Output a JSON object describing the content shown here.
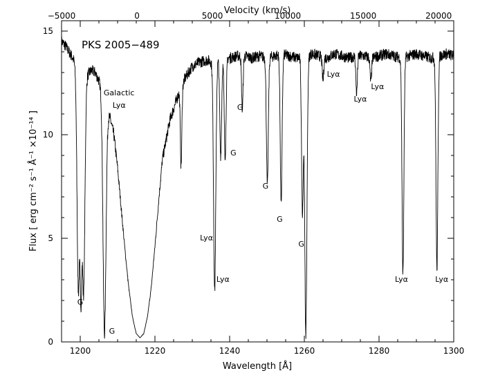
{
  "chart_data": {
    "type": "line",
    "object_label": "PKS 2005−489",
    "xlabel": "Wavelength  [Å]",
    "ylabel": "Flux  [ erg cm⁻² s⁻¹ Å⁻¹ ×10⁻¹⁴ ]",
    "top_xlabel": "Velocity (km/s)",
    "xlim": [
      1195,
      1300
    ],
    "ylim": [
      0,
      15.5
    ],
    "top_xlim": [
      -5000,
      21000
    ],
    "x_ticks": [
      1200,
      1220,
      1240,
      1260,
      1280,
      1300
    ],
    "y_ticks": [
      0,
      5,
      10,
      15
    ],
    "top_ticks": [
      -5000,
      0,
      5000,
      10000,
      15000,
      20000
    ],
    "top_tick_labels": [
      "−5000",
      "0",
      "5000",
      "10000",
      "15000",
      "20000"
    ],
    "spectrum": {
      "x": [
        1195,
        1196,
        1197,
        1198,
        1199,
        1200,
        1200.5,
        1201,
        1202,
        1203,
        1204,
        1205,
        1206,
        1206.8,
        1207.5,
        1208,
        1209,
        1210,
        1211,
        1212,
        1213,
        1214,
        1215,
        1216,
        1217,
        1218,
        1219,
        1220,
        1221,
        1222,
        1224,
        1226,
        1228,
        1230,
        1232,
        1234,
        1235.5,
        1236.2,
        1237,
        1238,
        1240,
        1242,
        1244,
        1246,
        1248,
        1250,
        1252,
        1254,
        1256,
        1258,
        1260,
        1262,
        1264,
        1266,
        1268,
        1270,
        1272,
        1274,
        1276,
        1278,
        1280,
        1282,
        1284,
        1286,
        1288,
        1290,
        1292,
        1294,
        1296,
        1298,
        1300
      ],
      "y": [
        14.5,
        14.3,
        14.0,
        13.7,
        13.3,
        13.0,
        12.8,
        12.7,
        12.9,
        13.1,
        13.0,
        12.6,
        12.2,
        11.6,
        11.0,
        10.8,
        10.0,
        8.4,
        6.4,
        4.4,
        2.6,
        1.2,
        0.4,
        0.2,
        0.4,
        1.2,
        2.6,
        4.6,
        6.8,
        8.8,
        10.7,
        11.8,
        12.7,
        13.3,
        13.5,
        13.6,
        13.5,
        13.6,
        13.7,
        13.8,
        13.7,
        13.8,
        13.8,
        13.7,
        13.8,
        13.7,
        13.8,
        13.9,
        13.8,
        13.7,
        13.8,
        13.9,
        13.8,
        13.7,
        13.9,
        13.8,
        13.7,
        13.8,
        13.8,
        13.7,
        13.8,
        13.9,
        13.8,
        13.7,
        13.8,
        13.9,
        13.8,
        13.7,
        13.8,
        13.9,
        13.8
      ]
    },
    "absorption_lines": [
      {
        "wavelength": 1199.5,
        "depth": 2.5,
        "width": 0.35
      },
      {
        "wavelength": 1200.2,
        "depth": 2.1,
        "width": 0.3
      },
      {
        "wavelength": 1200.9,
        "depth": 2.4,
        "width": 0.35
      },
      {
        "wavelength": 1206.5,
        "depth": 0.4,
        "width": 0.4
      },
      {
        "wavelength": 1227.0,
        "depth": 8.5,
        "width": 0.2
      },
      {
        "wavelength": 1236.0,
        "depth": 2.5,
        "width": 0.3
      },
      {
        "wavelength": 1237.6,
        "depth": 9.0,
        "width": 0.25
      },
      {
        "wavelength": 1238.8,
        "depth": 9.0,
        "width": 0.25
      },
      {
        "wavelength": 1243.4,
        "depth": 11.2,
        "width": 0.2
      },
      {
        "wavelength": 1250.1,
        "depth": 7.5,
        "width": 0.25
      },
      {
        "wavelength": 1253.8,
        "depth": 6.8,
        "width": 0.25
      },
      {
        "wavelength": 1259.5,
        "depth": 6.3,
        "width": 0.25
      },
      {
        "wavelength": 1260.4,
        "depth": 0.4,
        "width": 0.3
      },
      {
        "wavelength": 1265.0,
        "depth": 12.6,
        "width": 0.2
      },
      {
        "wavelength": 1274.0,
        "depth": 12.0,
        "width": 0.2
      },
      {
        "wavelength": 1277.8,
        "depth": 12.5,
        "width": 0.2
      },
      {
        "wavelength": 1286.4,
        "depth": 3.3,
        "width": 0.25
      },
      {
        "wavelength": 1295.5,
        "depth": 3.5,
        "width": 0.25
      }
    ],
    "annotations": [
      {
        "text": "Galactic",
        "x": 1210.4,
        "y": 11.9
      },
      {
        "text": "Lyα",
        "x": 1210.4,
        "y": 11.3
      },
      {
        "text": "G",
        "x": 1200.0,
        "y": 1.8
      },
      {
        "text": "G",
        "x": 1208.5,
        "y": 0.4
      },
      {
        "text": "Lyα",
        "x": 1233.8,
        "y": 4.9
      },
      {
        "text": "Lyα",
        "x": 1238.2,
        "y": 2.9
      },
      {
        "text": "G",
        "x": 1242.8,
        "y": 11.2
      },
      {
        "text": "G",
        "x": 1241.0,
        "y": 9.0
      },
      {
        "text": "G",
        "x": 1249.6,
        "y": 7.4
      },
      {
        "text": "G",
        "x": 1253.4,
        "y": 5.8
      },
      {
        "text": "G",
        "x": 1259.2,
        "y": 4.6
      },
      {
        "text": "Lyα",
        "x": 1267.8,
        "y": 12.8
      },
      {
        "text": "Lyα",
        "x": 1275.0,
        "y": 11.6
      },
      {
        "text": "Lyα",
        "x": 1279.6,
        "y": 12.2
      },
      {
        "text": "Lyα",
        "x": 1286.0,
        "y": 2.9
      },
      {
        "text": "Lyα",
        "x": 1296.8,
        "y": 2.9
      }
    ]
  }
}
